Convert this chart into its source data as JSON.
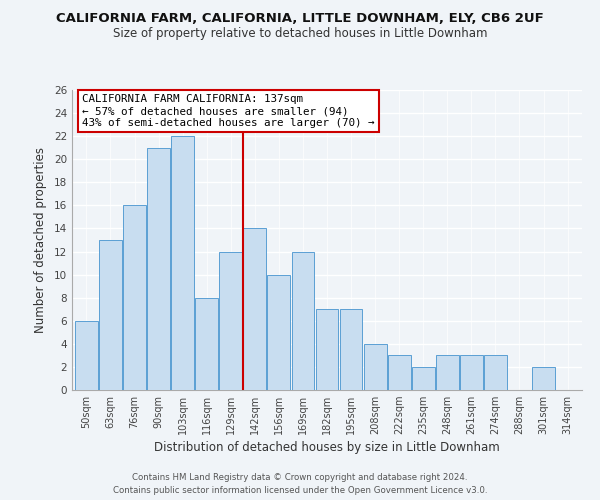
{
  "title1": "CALIFORNIA FARM, CALIFORNIA, LITTLE DOWNHAM, ELY, CB6 2UF",
  "title2": "Size of property relative to detached houses in Little Downham",
  "xlabel": "Distribution of detached houses by size in Little Downham",
  "ylabel": "Number of detached properties",
  "footer1": "Contains HM Land Registry data © Crown copyright and database right 2024.",
  "footer2": "Contains public sector information licensed under the Open Government Licence v3.0.",
  "annotation_line1": "CALIFORNIA FARM CALIFORNIA: 137sqm",
  "annotation_line2": "← 57% of detached houses are smaller (94)",
  "annotation_line3": "43% of semi-detached houses are larger (70) →",
  "bar_labels": [
    "50sqm",
    "63sqm",
    "76sqm",
    "90sqm",
    "103sqm",
    "116sqm",
    "129sqm",
    "142sqm",
    "156sqm",
    "169sqm",
    "182sqm",
    "195sqm",
    "208sqm",
    "222sqm",
    "235sqm",
    "248sqm",
    "261sqm",
    "274sqm",
    "288sqm",
    "301sqm",
    "314sqm"
  ],
  "bar_values": [
    6,
    13,
    16,
    21,
    22,
    8,
    12,
    14,
    10,
    12,
    7,
    7,
    4,
    3,
    2,
    3,
    3,
    3,
    0,
    2,
    0
  ],
  "bar_color": "#c8ddf0",
  "bar_edge_color": "#5a9fd4",
  "background_color": "#f0f4f8",
  "ylim": [
    0,
    26
  ],
  "yticks": [
    0,
    2,
    4,
    6,
    8,
    10,
    12,
    14,
    16,
    18,
    20,
    22,
    24,
    26
  ],
  "annotation_box_color": "white",
  "annotation_box_edge": "#cc0000",
  "property_line_x": 6.5,
  "property_line_color": "#cc0000"
}
